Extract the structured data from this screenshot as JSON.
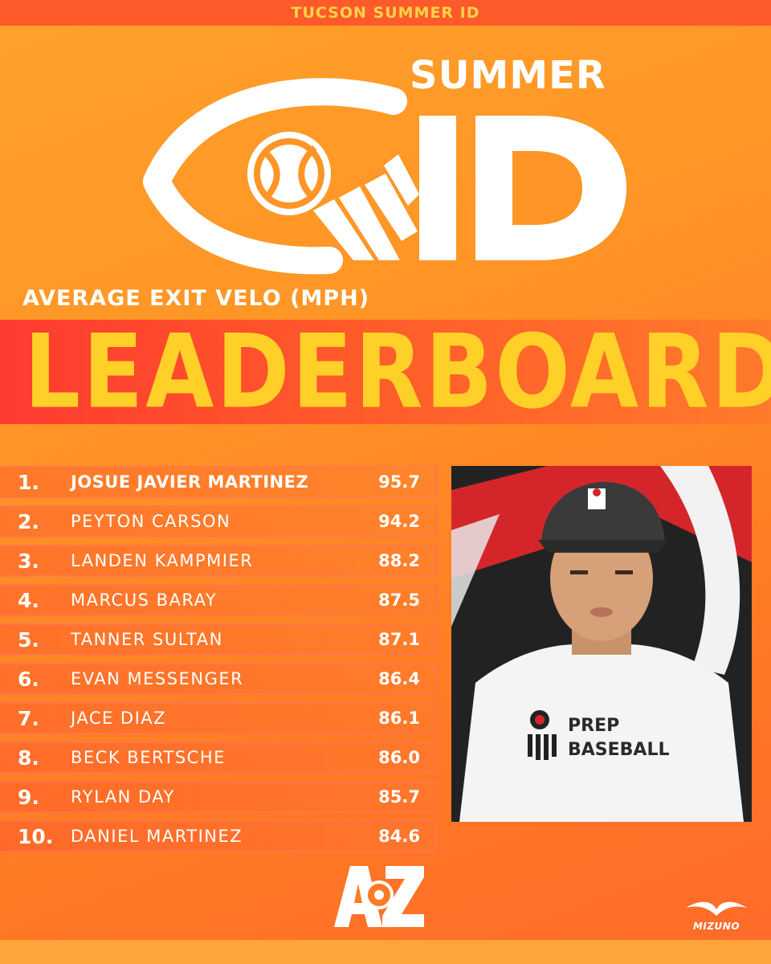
{
  "header": {
    "event": "TUCSON SUMMER ID"
  },
  "logo": {
    "word": "SUMMER",
    "letters": "ID",
    "icon": "eye-baseball-logo"
  },
  "metric_label": "AVERAGE EXIT VELO (MPH)",
  "banner_title": "LEADERBOARD",
  "leaderboard": [
    {
      "rank": "1.",
      "name": "JOSUE JAVIER MARTINEZ",
      "value": "95.7"
    },
    {
      "rank": "2.",
      "name": "PEYTON CARSON",
      "value": "94.2"
    },
    {
      "rank": "3.",
      "name": "LANDEN KAMPMIER",
      "value": "88.2"
    },
    {
      "rank": "4.",
      "name": "MARCUS BARAY",
      "value": "87.5"
    },
    {
      "rank": "5.",
      "name": "TANNER SULTAN",
      "value": "87.1"
    },
    {
      "rank": "6.",
      "name": "EVAN MESSENGER",
      "value": "86.4"
    },
    {
      "rank": "7.",
      "name": "JACE DIAZ",
      "value": "86.1"
    },
    {
      "rank": "8.",
      "name": "BECK BERTSCHE",
      "value": "86.0"
    },
    {
      "rank": "9.",
      "name": "RYLAN DAY",
      "value": "85.7"
    },
    {
      "rank": "10.",
      "name": "DANIEL MARTINEZ",
      "value": "84.6"
    }
  ],
  "photo": {
    "shirt_text_1": "PREP",
    "shirt_text_2": "BASEBALL"
  },
  "footer": {
    "az_logo_text": "AZ",
    "sponsor": "MIZUNO"
  },
  "colors": {
    "banner_text": "#ffd028",
    "top_bar": "#ff5a2a",
    "accent_red": "#ff3b30"
  }
}
